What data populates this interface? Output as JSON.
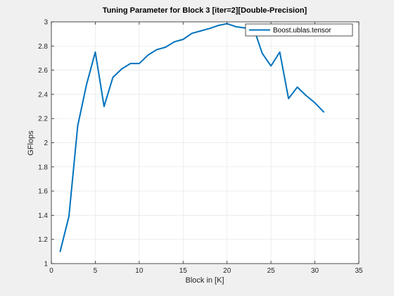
{
  "colors": {
    "figure_bg": "#f0f0f0",
    "axes_bg": "#ffffff",
    "series": "#0072bd",
    "grid": "#e6e6e6",
    "axis": "#262626"
  },
  "chart_data": {
    "type": "line",
    "title": "Tuning Parameter for Block 3 [iter=2][Double-Precision]",
    "xlabel": "Block in [K]",
    "ylabel": "GFlops",
    "xlim": [
      0,
      35
    ],
    "ylim": [
      1,
      3
    ],
    "xticks": [
      0,
      5,
      10,
      15,
      20,
      25,
      30,
      35
    ],
    "yticks": [
      1,
      1.2,
      1.4,
      1.6,
      1.8,
      2,
      2.2,
      2.4,
      2.6,
      2.8,
      3
    ],
    "xtick_labels": [
      "0",
      "5",
      "10",
      "15",
      "20",
      "25",
      "30",
      "35"
    ],
    "ytick_labels": [
      "1",
      "1.2",
      "1.4",
      "1.6",
      "1.8",
      "2",
      "2.2",
      "2.4",
      "2.6",
      "2.8",
      "3"
    ],
    "grid": true,
    "legend_position": "top-right",
    "series": [
      {
        "name": "Boost.ublas.tensor",
        "x": [
          1,
          2,
          3,
          4,
          5,
          6,
          7,
          8,
          9,
          10,
          11,
          12,
          13,
          14,
          15,
          16,
          17,
          18,
          19,
          20,
          21,
          22,
          23,
          24,
          25,
          26,
          27,
          28,
          29,
          30,
          31
        ],
        "y": [
          1.1,
          1.39,
          2.14,
          2.48,
          2.75,
          2.3,
          2.54,
          2.61,
          2.655,
          2.655,
          2.725,
          2.77,
          2.79,
          2.835,
          2.855,
          2.905,
          2.925,
          2.945,
          2.97,
          2.985,
          2.96,
          2.95,
          2.955,
          2.74,
          2.635,
          2.75,
          2.365,
          2.46,
          2.39,
          2.33,
          2.255
        ]
      }
    ]
  }
}
